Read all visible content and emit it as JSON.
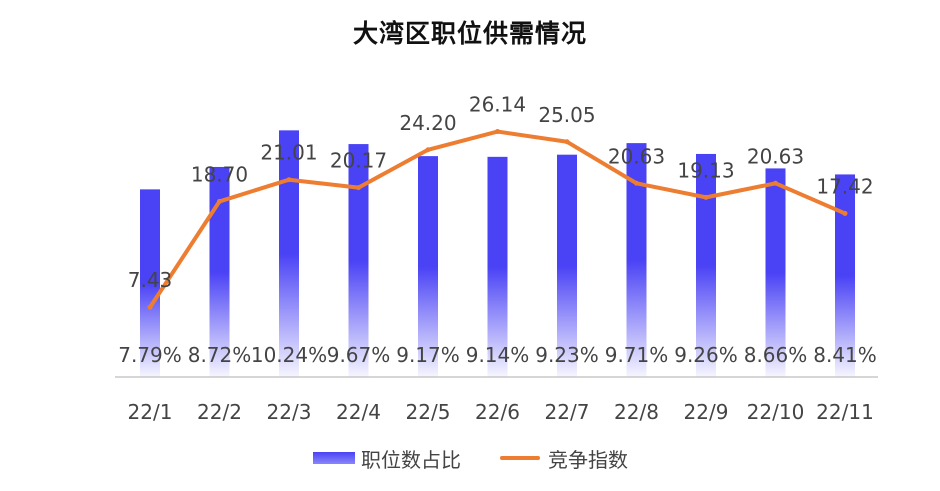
{
  "title": "大湾区职位供需情况",
  "colors": {
    "bar": "#4A42F5",
    "line": "#ED7D31",
    "axis": "#c8c8c8",
    "text": "#444444"
  },
  "legend": {
    "bar_label": "职位数占比",
    "line_label": "竞争指数"
  },
  "chart_data": {
    "type": "bar",
    "title": "大湾区职位供需情况",
    "categories": [
      "22/1",
      "22/2",
      "22/3",
      "22/4",
      "22/5",
      "22/6",
      "22/7",
      "22/8",
      "22/9",
      "22/10",
      "22/11"
    ],
    "series": [
      {
        "name": "职位数占比",
        "type": "bar",
        "unit": "%",
        "values": [
          7.79,
          8.72,
          10.24,
          9.67,
          9.17,
          9.14,
          9.23,
          9.71,
          9.26,
          8.66,
          8.41
        ],
        "labels": [
          "7.79%",
          "8.72%",
          "10.24%",
          "9.67%",
          "9.17%",
          "9.14%",
          "9.23%",
          "9.71%",
          "9.26%",
          "8.66%",
          "8.41%"
        ]
      },
      {
        "name": "竞争指数",
        "type": "line",
        "values": [
          7.43,
          18.7,
          21.01,
          20.17,
          24.2,
          26.14,
          25.05,
          20.63,
          19.13,
          20.63,
          17.42
        ],
        "labels": [
          "7.43",
          "18.70",
          "21.01",
          "20.17",
          "24.20",
          "26.14",
          "25.05",
          "20.63",
          "19.13",
          "20.63",
          "17.42"
        ]
      }
    ],
    "bar_ylim": [
      0,
      11.5
    ],
    "line_ylim": [
      0,
      29.5
    ],
    "grid": false,
    "legend_position": "bottom"
  }
}
